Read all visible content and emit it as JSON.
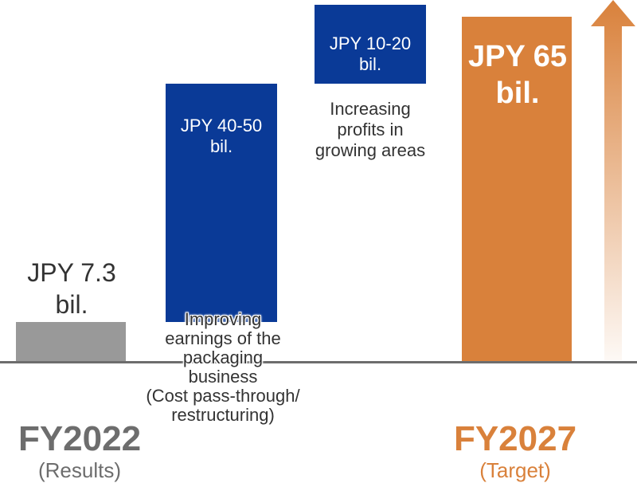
{
  "colors": {
    "results_bar": "#999999",
    "step_bar": "#0a3a97",
    "target_bar": "#d9813b",
    "axis": "#6d6d6d",
    "results_text": "#6d6d6d",
    "target_text": "#d9813b"
  },
  "chart_data": {
    "type": "bar",
    "subtype": "waterfall",
    "unit": "JPY bil.",
    "ylim": [
      0,
      65
    ],
    "grid": false,
    "bars": [
      {
        "key": "fy2022",
        "kind": "total",
        "base": 0,
        "value": 7.3,
        "label_line1": "JPY 7.3",
        "label_line2": "bil."
      },
      {
        "key": "packaging",
        "kind": "increase",
        "base": 7.3,
        "value_range": [
          40,
          50
        ],
        "value": 45,
        "label_line1": "JPY 40-50",
        "label_line2": "bil.",
        "description": [
          "Improving",
          "earnings of the",
          "packaging",
          "business",
          "(Cost pass-through/",
          "restructuring)"
        ]
      },
      {
        "key": "growth",
        "kind": "increase",
        "base": 52.3,
        "value_range": [
          10,
          20
        ],
        "value": 15,
        "label_line1": "JPY 10-20",
        "label_line2": "bil.",
        "description": [
          "Increasing",
          "profits in",
          "growing areas"
        ]
      },
      {
        "key": "fy2027",
        "kind": "total",
        "base": 0,
        "value": 65,
        "label_line1": "JPY 65",
        "label_line2": "bil."
      }
    ],
    "categories": [
      {
        "key": "fy2022",
        "label": "FY2022",
        "sublabel": "(Results)"
      },
      {
        "key": "fy2027",
        "label": "FY2027",
        "sublabel": "(Target)"
      }
    ]
  }
}
